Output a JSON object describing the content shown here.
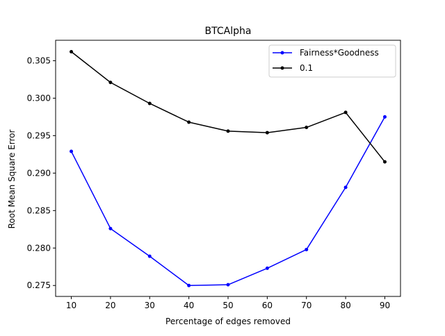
{
  "chart_data": {
    "type": "line",
    "title": "BTCAlpha",
    "xlabel": "Percentage of edges removed",
    "ylabel": "Root Mean Square Error",
    "x": [
      10,
      20,
      30,
      40,
      50,
      60,
      70,
      80,
      90
    ],
    "xlim": [
      6.0,
      94.0
    ],
    "ylim": [
      0.27354,
      0.30773
    ],
    "xticks": [
      10,
      20,
      30,
      40,
      50,
      60,
      70,
      80,
      90
    ],
    "xtick_labels": [
      "10",
      "20",
      "30",
      "40",
      "50",
      "60",
      "70",
      "80",
      "90"
    ],
    "yticks": [
      0.275,
      0.28,
      0.285,
      0.29,
      0.295,
      0.3,
      0.305
    ],
    "ytick_labels": [
      "0.275",
      "0.280",
      "0.285",
      "0.290",
      "0.295",
      "0.300",
      "0.305"
    ],
    "grid": false,
    "legend_position": "top-right",
    "series": [
      {
        "name": "Fairness*Goodness",
        "color": "#0000ff",
        "marker": "circle",
        "values": [
          0.2929,
          0.2826,
          0.2789,
          0.275,
          0.2751,
          0.2773,
          0.2798,
          0.2881,
          0.2975
        ]
      },
      {
        "name": "0.1",
        "color": "#000000",
        "marker": "circle",
        "values": [
          0.3062,
          0.3021,
          0.2993,
          0.2968,
          0.2956,
          0.2954,
          0.2961,
          0.2981,
          0.2915
        ]
      }
    ]
  }
}
